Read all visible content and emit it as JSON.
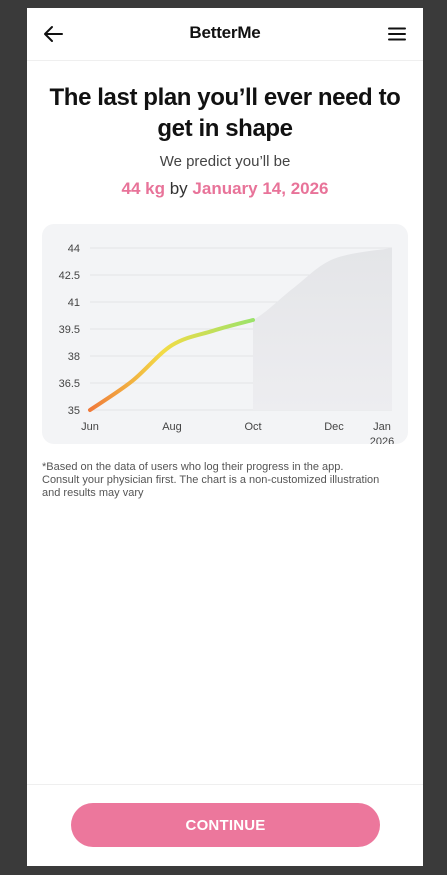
{
  "header": {
    "brand": "BetterMe",
    "back_icon": "arrow-left-icon",
    "menu_icon": "hamburger-menu-icon"
  },
  "main": {
    "headline": "The last plan you’ll ever need to get in shape",
    "predict_text": "We predict you’ll be",
    "target_weight": "44 kg",
    "by_word": "by",
    "target_date": "January 14, 2026",
    "disclaimer": "*Based on the data of users who log their progress in the app. Consult your physician first. The chart is a non-customized illustration and results may vary"
  },
  "footer": {
    "continue_label": "CONTINUE"
  },
  "colors": {
    "accent": "#e87399",
    "button": "#ec779c",
    "gradient_start": "#f07a3a",
    "gradient_mid": "#f2dc46",
    "gradient_end": "#9be26a"
  },
  "chart_data": {
    "type": "area",
    "title": "",
    "xlabel": "",
    "ylabel": "",
    "ylim": [
      35,
      44
    ],
    "y_ticks": [
      "44",
      "42.5",
      "41",
      "39.5",
      "38",
      "36.5",
      "35"
    ],
    "x_ticks": [
      "Jun",
      "Aug",
      "Oct",
      "Dec",
      "Jan 2026"
    ],
    "grid": true,
    "series": [
      {
        "x": [
          "Jun",
          "Jul",
          "Aug",
          "Sep",
          "Oct"
        ],
        "values": [
          35.0,
          36.6,
          38.6,
          39.4,
          40.0
        ]
      },
      {
        "x": [
          "Oct",
          "Nov",
          "Dec",
          "Jan 2026"
        ],
        "values": [
          40.0,
          41.8,
          43.4,
          44.0
        ]
      }
    ]
  }
}
